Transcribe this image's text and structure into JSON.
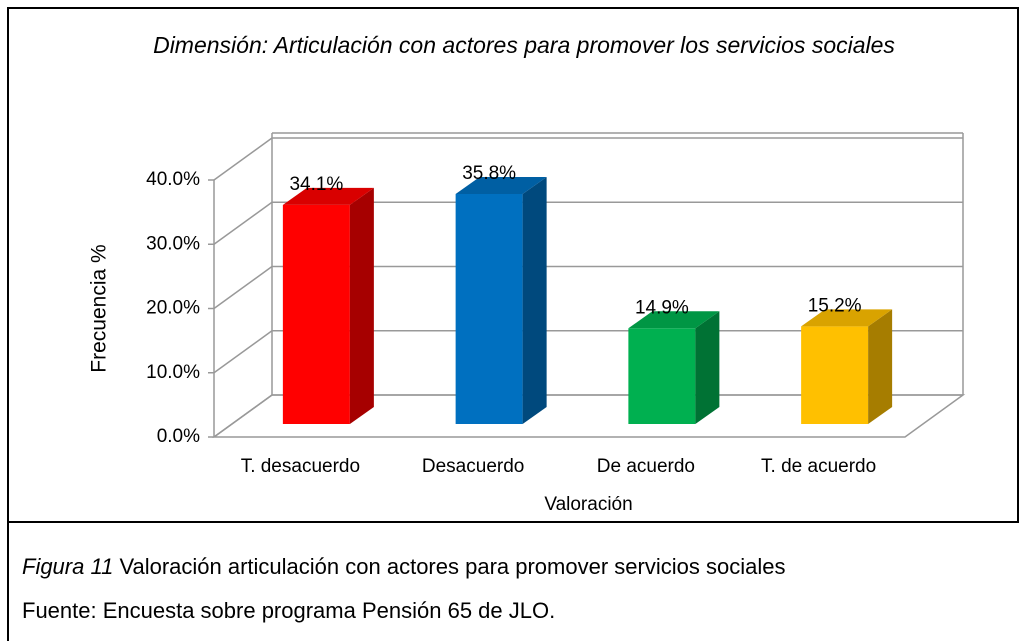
{
  "chart_data": {
    "type": "bar3d",
    "title": "Dimensión: Articulación con actores para promover los servicios sociales",
    "x_label": "Valoración",
    "y_label": "Frecuencia %",
    "categories": [
      "T. desacuerdo",
      "Desacuerdo",
      "De acuerdo",
      "T. de acuerdo"
    ],
    "values": [
      34.1,
      35.8,
      14.9,
      15.2
    ],
    "value_labels": [
      "34.1%",
      "35.8%",
      "14.9%",
      "15.2%"
    ],
    "colors": [
      "#ff0000",
      "#0070c0",
      "#00b050",
      "#ffc000"
    ],
    "ylim": [
      0,
      40
    ],
    "yticks": [
      {
        "value": 0,
        "label": "0.0%"
      },
      {
        "value": 10,
        "label": "10.0%"
      },
      {
        "value": 20,
        "label": "20.0%"
      },
      {
        "value": 30,
        "label": "30.0%"
      },
      {
        "value": 40,
        "label": "40.0%"
      }
    ],
    "grid": true
  },
  "caption": {
    "figure": "Figura 11",
    "text": "Valoración articulación con actores para promover servicios sociales",
    "source": "Fuente: Encuesta sobre programa Pensión 65 de JLO."
  }
}
